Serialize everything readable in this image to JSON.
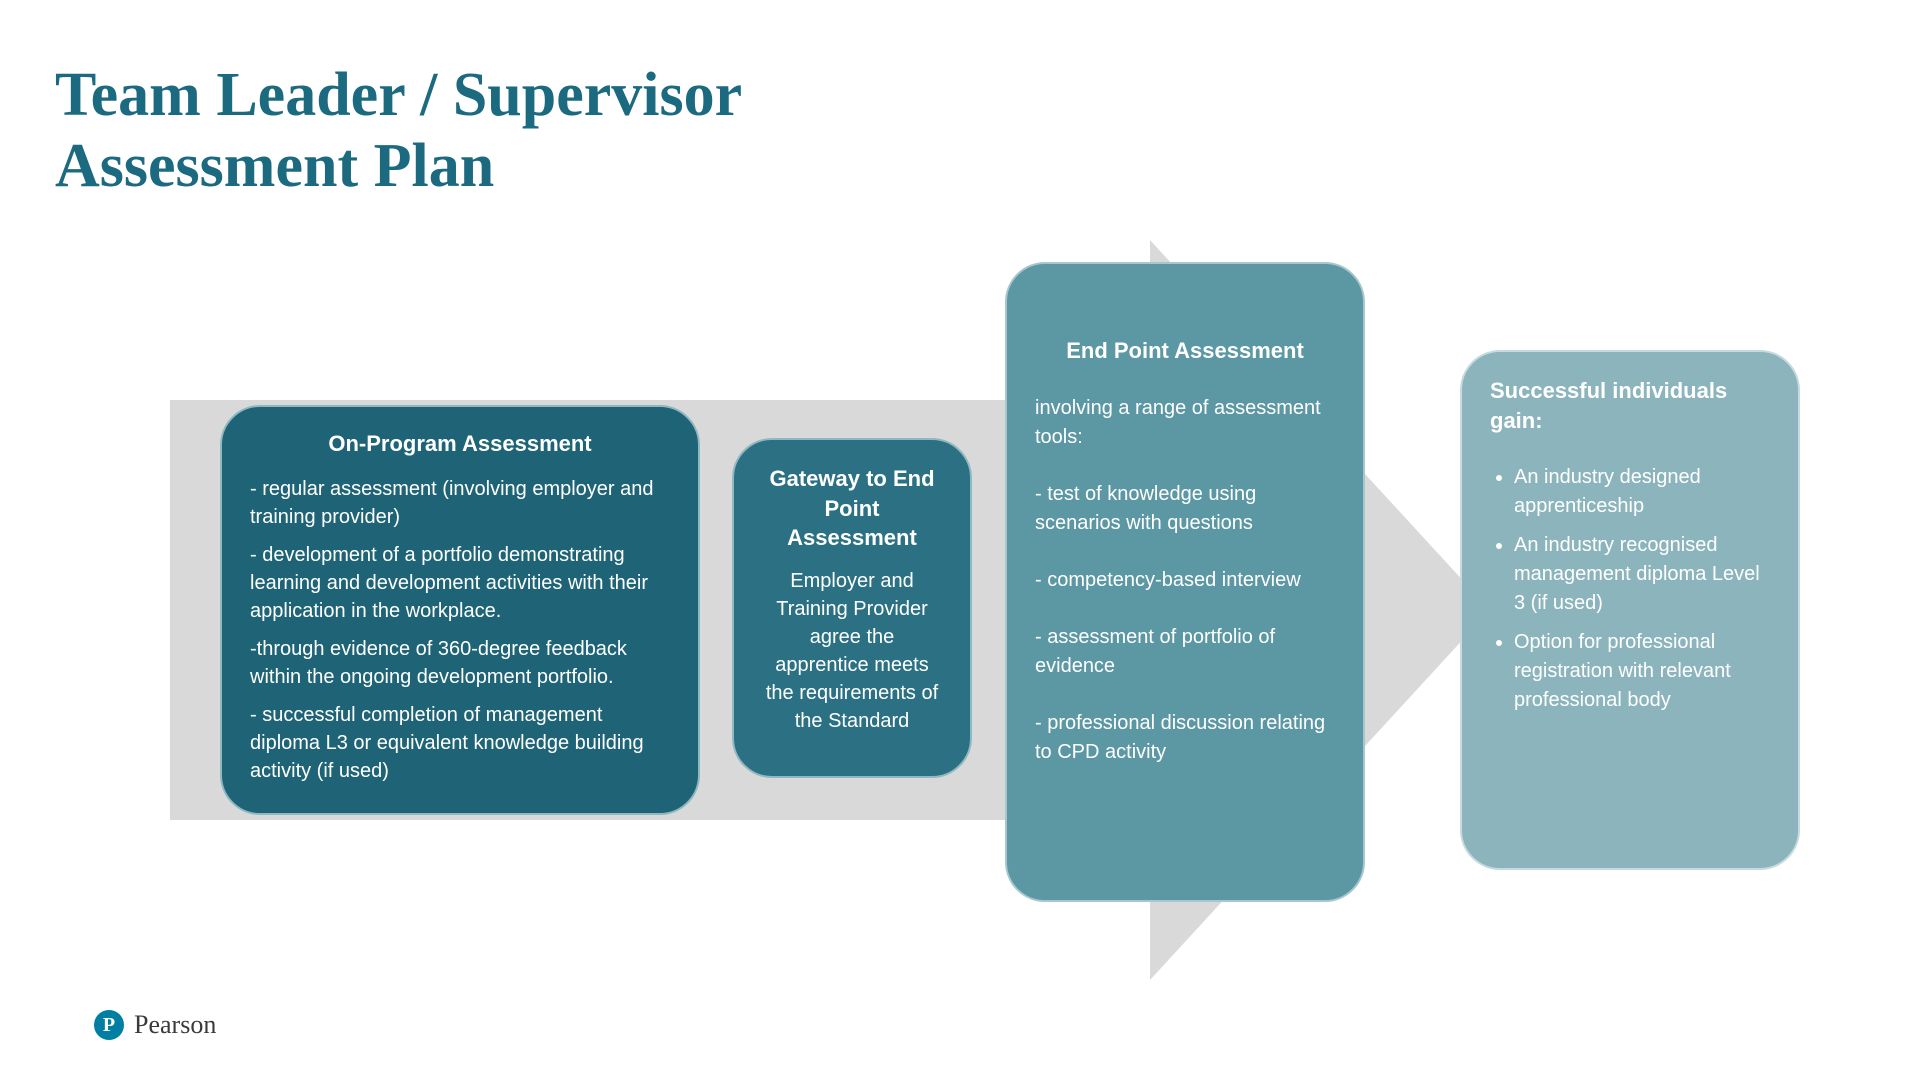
{
  "title_line1": "Team Leader / Supervisor",
  "title_line2": "Assessment Plan",
  "colors": {
    "title": "#1b6a80",
    "arrow": "#d9d9d9",
    "box1_bg": "#1e6476",
    "box2_bg": "#2b7183",
    "box3_bg": "#5c97a4",
    "box4_bg": "#8bb4bd",
    "text": "#ffffff",
    "logo_badge": "#007fa3",
    "logo_text": "#3a3a3a"
  },
  "box1": {
    "title": "On-Program Assessment",
    "p1": "- regular assessment (involving  employer and training provider)",
    "p2": "- development of a portfolio demonstrating learning and development activities with their application in the workplace.",
    "p3": "-through evidence of 360-degree feedback within the ongoing development portfolio.",
    "p4": "- successful completion of  management diploma L3 or equivalent knowledge building activity (if used)"
  },
  "box2": {
    "title": "Gateway to End Point Assessment",
    "body": "Employer and Training Provider agree the apprentice meets the requirements of the Standard"
  },
  "box3": {
    "title": "End Point Assessment",
    "p0": "involving a range of assessment tools:",
    "p1": "- test of knowledge using scenarios with questions",
    "p2": "- competency-based interview",
    "p3": "-  assessment of portfolio of evidence",
    "p4": "-  professional discussion relating to  CPD activity"
  },
  "box4": {
    "title": "Successful  individuals gain:",
    "li1": "An industry designed apprenticeship",
    "li2": "An industry recognised management diploma Level 3 (if used)",
    "li3": "Option for professional registration with relevant professional body"
  },
  "logo": {
    "badge": "P",
    "name": "Pearson"
  }
}
